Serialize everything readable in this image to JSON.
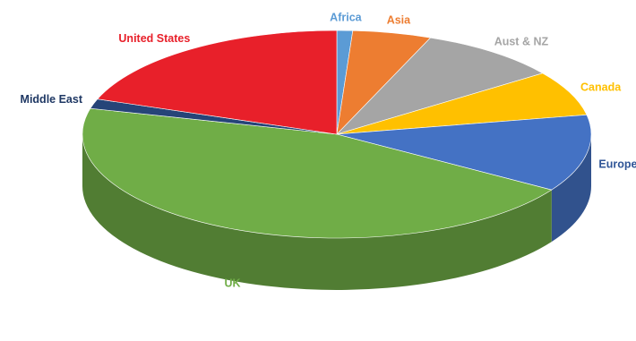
{
  "chart_data": {
    "type": "pie",
    "title": "",
    "style": "3d-exploded-none",
    "categories": [
      "Africa",
      "Asia",
      "Aust & NZ",
      "Canada",
      "Europe",
      "UK",
      "Middle East",
      "United States"
    ],
    "values": [
      1.0,
      5.0,
      9.0,
      7.0,
      12.0,
      45.0,
      1.5,
      19.5
    ],
    "unit": "percent",
    "colors": [
      "#5b9bd5",
      "#ed7d31",
      "#a5a5a5",
      "#ffc000",
      "#4472c4",
      "#70ad47",
      "#264478",
      "#e8202a"
    ],
    "label_colors": [
      "#5b9bd5",
      "#ed7d31",
      "#a5a5a5",
      "#ffc000",
      "#2f5597",
      "#70ad47",
      "#1f3864",
      "#e8202a"
    ],
    "start_angle_deg_clockwise_from_top": 0,
    "legend": "none",
    "data_labels": "category-names-outside"
  }
}
